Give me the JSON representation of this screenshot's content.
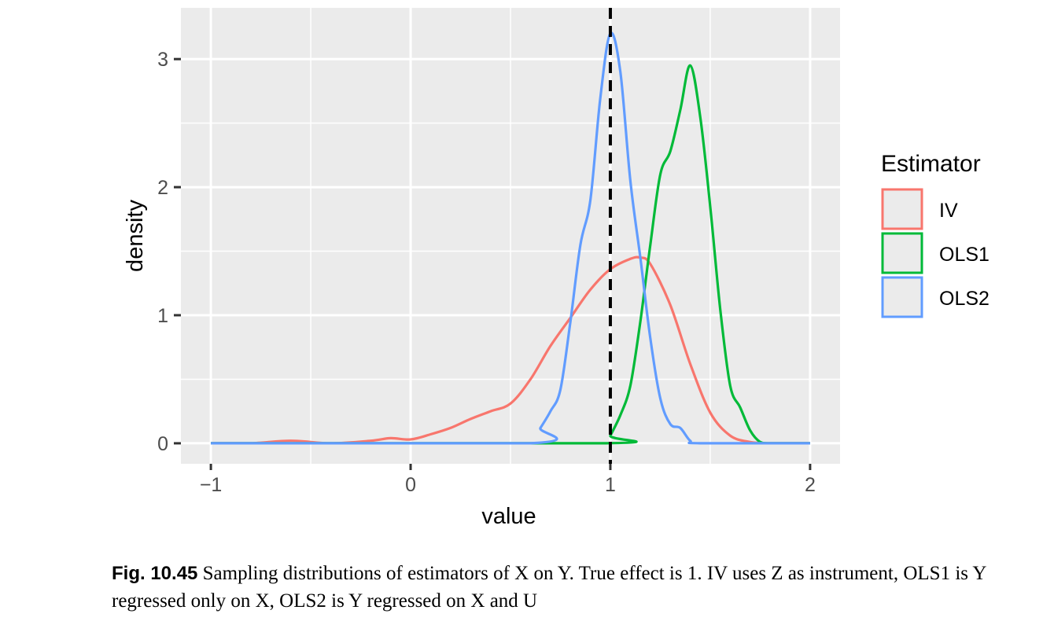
{
  "chart_data": {
    "type": "line",
    "xlabel": "value",
    "ylabel": "density",
    "xlim": [
      -1.15,
      2.15
    ],
    "ylim": [
      -0.16,
      3.4
    ],
    "x_ticks": [
      -1,
      0,
      1,
      2
    ],
    "x_tick_labels": [
      "−1",
      "0",
      "1",
      "2"
    ],
    "y_ticks": [
      0,
      1,
      2,
      3
    ],
    "y_tick_labels": [
      "0",
      "1",
      "2",
      "3"
    ],
    "grid": true,
    "reference_line": {
      "x": 1,
      "style": "dashed",
      "color": "#000000"
    },
    "legend": {
      "title": "Estimator",
      "placement": "right"
    },
    "series": [
      {
        "name": "IV",
        "color": "#F8766D",
        "x": [
          -1.0,
          -0.8,
          -0.6,
          -0.4,
          -0.2,
          -0.1,
          0.0,
          0.1,
          0.2,
          0.3,
          0.4,
          0.5,
          0.6,
          0.7,
          0.8,
          0.9,
          1.0,
          1.1,
          1.15,
          1.2,
          1.3,
          1.4,
          1.5,
          1.6,
          1.7,
          1.8,
          2.0
        ],
        "y": [
          0.0,
          0.0,
          0.02,
          0.0,
          0.02,
          0.04,
          0.03,
          0.07,
          0.12,
          0.19,
          0.25,
          0.31,
          0.5,
          0.76,
          0.98,
          1.2,
          1.36,
          1.44,
          1.45,
          1.4,
          1.08,
          0.62,
          0.24,
          0.06,
          0.01,
          0.0,
          0.0
        ]
      },
      {
        "name": "OLS1",
        "color": "#00BA38",
        "x": [
          -1.0,
          0.98,
          1.0,
          1.05,
          1.1,
          1.15,
          1.2,
          1.25,
          1.3,
          1.35,
          1.4,
          1.45,
          1.5,
          1.55,
          1.6,
          1.65,
          1.7,
          1.75,
          1.8,
          2.0
        ],
        "y": [
          0.0,
          0.0,
          0.06,
          0.22,
          0.45,
          0.95,
          1.55,
          2.1,
          2.28,
          2.6,
          2.95,
          2.55,
          1.85,
          1.05,
          0.45,
          0.28,
          0.1,
          0.01,
          0.0,
          0.0
        ]
      },
      {
        "name": "OLS2",
        "color": "#619CFF",
        "x": [
          -1.0,
          0.6,
          0.65,
          0.7,
          0.75,
          0.8,
          0.85,
          0.9,
          0.95,
          1.0,
          1.05,
          1.1,
          1.15,
          1.2,
          1.25,
          1.3,
          1.35,
          1.4,
          1.45,
          2.0
        ],
        "y": [
          0.0,
          0.0,
          0.12,
          0.25,
          0.42,
          0.95,
          1.55,
          1.9,
          2.7,
          3.2,
          2.9,
          2.05,
          1.45,
          0.82,
          0.35,
          0.15,
          0.12,
          0.02,
          0.0,
          0.0
        ]
      }
    ]
  },
  "caption": {
    "label": "Fig. 10.45",
    "text": "Sampling distributions of estimators of X on Y. True effect is 1. IV uses Z as instrument, OLS1 is Y regressed only on X, OLS2 is Y regressed on X and U"
  }
}
